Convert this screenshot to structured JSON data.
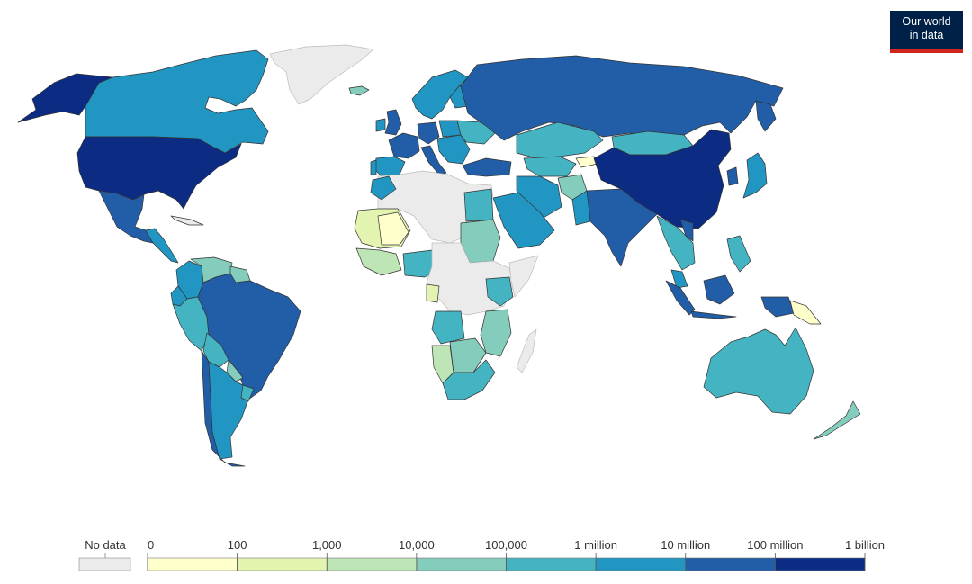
{
  "logo": {
    "line1": "Our world",
    "line2": "in data"
  },
  "legend": {
    "no_data_label": "No data",
    "no_data_color": "#ebebeb",
    "bins": [
      {
        "label": "0",
        "color": "#ffffcc"
      },
      {
        "label": "100",
        "color": "#e3f4b1"
      },
      {
        "label": "1,000",
        "color": "#bde5b5"
      },
      {
        "label": "10,000",
        "color": "#84ccbc"
      },
      {
        "label": "100,000",
        "color": "#45b4c2"
      },
      {
        "label": "1 million",
        "color": "#2196c2"
      },
      {
        "label": "10 million",
        "color": "#225ea8"
      },
      {
        "label": "100 million",
        "color": "#0c2c84"
      }
    ],
    "end_label": "1 billion"
  }
}
